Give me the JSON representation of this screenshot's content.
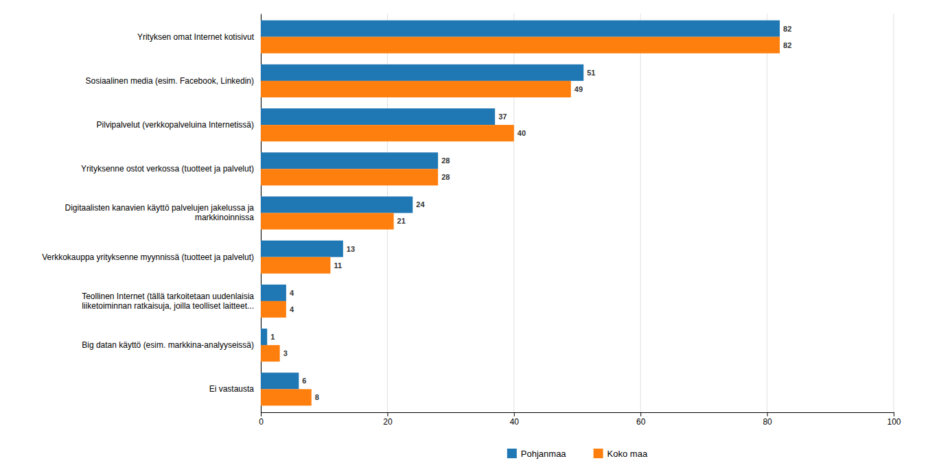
{
  "chart_data": {
    "type": "bar",
    "orientation": "horizontal",
    "categories": [
      "Yrityksen omat Internet kotisivut",
      "Sosiaalinen media (esim. Facebook, Linkedin)",
      "Pilvipalvelut  (verkkopalveluina Internetissä)",
      "Yrityksenne ostot verkossa (tuotteet ja palvelut)",
      "Digitaalisten kanavien käyttö palvelujen jakelussa ja\nmarkkinoinnissa",
      "Verkkokauppa yrityksenne myynnissä (tuotteet ja palvelut)",
      "Teollinen Internet (tällä tarkoitetaan uudenlaisia\nliiketoiminnan ratkaisuja, joilla teolliset laitteet...",
      "Big datan käyttö (esim. markkina-analyyseissä)",
      "Ei vastausta"
    ],
    "series": [
      {
        "name": "Pohjanmaa",
        "values": [
          82,
          51,
          37,
          28,
          24,
          13,
          4,
          1,
          6
        ]
      },
      {
        "name": "Koko maa",
        "values": [
          82,
          49,
          40,
          28,
          21,
          11,
          4,
          3,
          8
        ]
      }
    ],
    "xlim": [
      0,
      100
    ],
    "xticks": [
      0,
      20,
      40,
      60,
      80,
      100
    ],
    "grid": true,
    "legend": "bottom",
    "data_labels": true
  }
}
